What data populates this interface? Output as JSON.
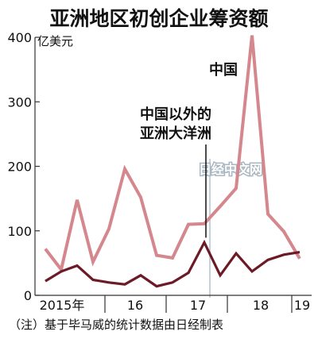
{
  "chart_data": {
    "type": "line",
    "title": "亚洲地区初创企业筹资额",
    "unit_label": "亿美元",
    "note": "（注）基于毕马威的统计数据由日经制表",
    "watermark": "日经中文网",
    "ylim": [
      0,
      400
    ],
    "y_ticks": [
      0,
      100,
      200,
      300,
      400
    ],
    "x_tick_labels": [
      "2015年",
      "16",
      "17",
      "18",
      "19"
    ],
    "series": [
      {
        "name": "中国",
        "color": "#d4878d",
        "values": [
          72,
          40,
          148,
          52,
          103,
          196,
          152,
          62,
          58,
          110,
          111,
          138,
          166,
          403,
          126,
          99,
          57
        ]
      },
      {
        "name": "中国以外的亚洲大洋洲",
        "color": "#6b1a26",
        "values": [
          22,
          37,
          46,
          24,
          20,
          17,
          31,
          14,
          20,
          35,
          82,
          31,
          65,
          37,
          55,
          63,
          67
        ]
      }
    ],
    "grid": false
  }
}
